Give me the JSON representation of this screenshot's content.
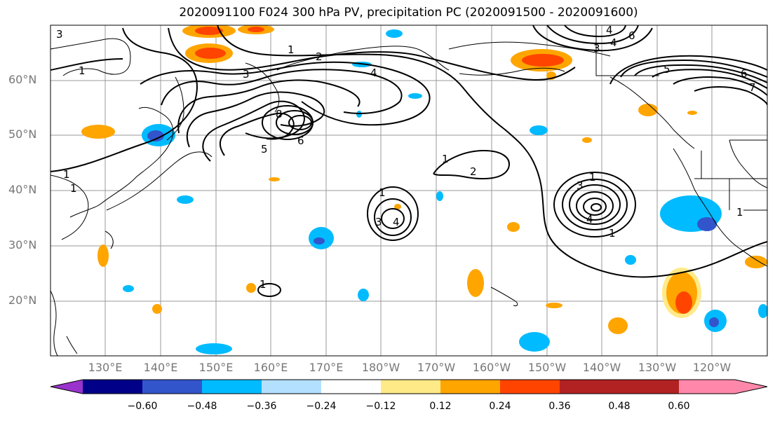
{
  "title": "2020091100 F024 300 hPa PV, precipitation PC (2020091500 - 2020091600)",
  "lat_labels": [
    "60°N",
    "50°N",
    "40°N",
    "30°N",
    "20°N"
  ],
  "lon_labels": [
    "130°E",
    "140°E",
    "150°E",
    "160°E",
    "170°E",
    "180°W",
    "170°W",
    "160°W",
    "150°W",
    "140°W",
    "130°W",
    "120°W"
  ],
  "colorbar": {
    "colors": [
      "#9933cc",
      "#000088",
      "#3355cc",
      "#00bbff",
      "#b3e0ff",
      "#ffffff",
      "#ffea88",
      "#ffa500",
      "#ff4400",
      "#b22222",
      "#ff88aa"
    ],
    "tick_labels": [
      "−0.60",
      "−0.48",
      "−0.36",
      "−0.24",
      "−0.12",
      "0.12",
      "0.24",
      "0.36",
      "0.48",
      "0.60"
    ]
  },
  "contour_labels": [
    "3",
    "1",
    "1",
    "1",
    "2",
    "4",
    "3",
    "8",
    "6",
    "5",
    "1",
    "2",
    "1",
    "3",
    "4",
    "1",
    "1",
    "3",
    "4",
    "1",
    "3",
    "4",
    "5",
    "6",
    "6",
    "7",
    "4",
    "1",
    "1"
  ]
}
